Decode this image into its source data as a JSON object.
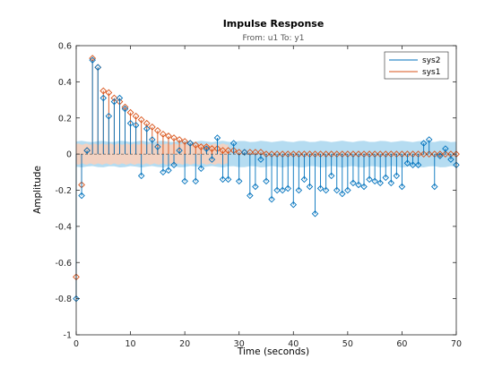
{
  "chart_data": {
    "type": "stem",
    "title": "Impulse Response",
    "subtitle": "From: u1  To: y1",
    "xlabel": "Time (seconds)",
    "ylabel": "Amplitude",
    "xlim": [
      0,
      70
    ],
    "ylim": [
      -1,
      0.6
    ],
    "xticks": [
      "0",
      "10",
      "20",
      "30",
      "40",
      "50",
      "60",
      "70"
    ],
    "yticks": [
      "0.6",
      "0.4",
      "0.2",
      "0",
      "-0.2",
      "-0.4",
      "-0.6",
      "-0.8",
      "-1"
    ],
    "legend": {
      "position": "top-right",
      "entries": [
        "sys2",
        "sys1"
      ]
    },
    "grid": false,
    "series": [
      {
        "name": "sys2",
        "color": "#0072bd",
        "x": [
          0,
          1,
          2,
          3,
          4,
          5,
          6,
          7,
          8,
          9,
          10,
          11,
          12,
          13,
          14,
          15,
          16,
          17,
          18,
          19,
          20,
          21,
          22,
          23,
          24,
          25,
          26,
          27,
          28,
          29,
          30,
          31,
          32,
          33,
          34,
          35,
          36,
          37,
          38,
          39,
          40,
          41,
          42,
          43,
          44,
          45,
          46,
          47,
          48,
          49,
          50,
          51,
          52,
          53,
          54,
          55,
          56,
          57,
          58,
          59,
          60,
          61,
          62,
          63,
          64,
          65,
          66,
          67,
          68,
          69,
          70
        ],
        "y": [
          -0.8,
          -0.23,
          0.02,
          0.52,
          0.48,
          0.31,
          0.21,
          0.29,
          0.31,
          0.25,
          0.17,
          0.16,
          -0.12,
          0.14,
          0.08,
          0.04,
          -0.1,
          -0.09,
          -0.06,
          0.02,
          -0.15,
          0.06,
          -0.15,
          -0.08,
          0.03,
          -0.03,
          0.09,
          -0.14,
          -0.14,
          0.06,
          -0.15,
          0.01,
          -0.23,
          -0.18,
          -0.03,
          -0.15,
          -0.25,
          -0.2,
          -0.2,
          -0.19,
          -0.28,
          -0.2,
          -0.14,
          -0.18,
          -0.33,
          -0.19,
          -0.2,
          -0.12,
          -0.2,
          -0.22,
          -0.2,
          -0.16,
          -0.17,
          -0.18,
          -0.14,
          -0.15,
          -0.16,
          -0.13,
          -0.16,
          -0.12,
          -0.18,
          -0.05,
          -0.06,
          -0.06,
          0.06,
          0.08,
          -0.18,
          -0.01,
          0.03,
          -0.03,
          -0.06
        ]
      },
      {
        "name": "sys1",
        "color": "#d95319",
        "x": [
          0,
          1,
          2,
          3,
          4,
          5,
          6,
          7,
          8,
          9,
          10,
          11,
          12,
          13,
          14,
          15,
          16,
          17,
          18,
          19,
          20,
          21,
          22,
          23,
          24,
          25,
          26,
          27,
          28,
          29,
          30,
          31,
          32,
          33,
          34,
          35,
          36,
          37,
          38,
          39,
          40,
          41,
          42,
          43,
          44,
          45,
          46,
          47,
          48,
          49,
          50,
          51,
          52,
          53,
          54,
          55,
          56,
          57,
          58,
          59,
          60,
          61,
          62,
          63,
          64,
          65,
          66,
          67,
          68,
          69,
          70
        ],
        "y": [
          -0.68,
          -0.17,
          0.02,
          0.53,
          0.48,
          0.35,
          0.34,
          0.31,
          0.29,
          0.26,
          0.23,
          0.21,
          0.19,
          0.17,
          0.15,
          0.13,
          0.11,
          0.1,
          0.09,
          0.08,
          0.07,
          0.06,
          0.05,
          0.04,
          0.04,
          0.03,
          0.03,
          0.02,
          0.02,
          0.02,
          0.01,
          0.01,
          0.01,
          0.01,
          0.01,
          0.0,
          0.0,
          0.0,
          0.0,
          0.0,
          0.0,
          0.0,
          0.0,
          0.0,
          0.0,
          0.0,
          0.0,
          0.0,
          0.0,
          0.0,
          0.0,
          0.0,
          0.0,
          0.0,
          0.0,
          0.0,
          0.0,
          0.0,
          0.0,
          0.0,
          0.0,
          0.0,
          0.0,
          0.0,
          0.0,
          0.0,
          0.0,
          0.0,
          0.0,
          0.0,
          0.0
        ]
      }
    ],
    "confidence_bands": [
      {
        "series": "sys2",
        "color": "#add8f0",
        "halfwidth": 0.07
      },
      {
        "series": "sys1",
        "color": "#f8d0bc",
        "halfwidth": 0.055,
        "x_end": 28
      }
    ]
  }
}
